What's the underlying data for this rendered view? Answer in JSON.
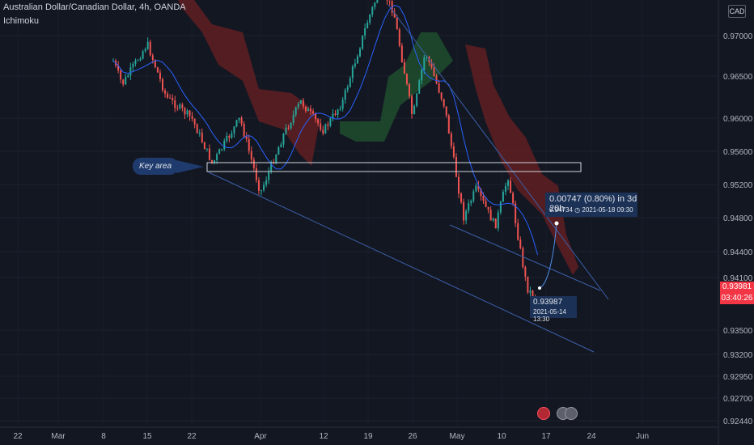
{
  "header": {
    "title": "Australian Dollar/Canadian Dollar, 4h, OANDA",
    "indicator": "Ichimoku",
    "currency_badge": "CAD"
  },
  "price_tag": {
    "price": "0.93981",
    "countdown": "03:40:26"
  },
  "annotations": {
    "key_area": "Key area",
    "measure_line1": "0.00747 (0.80%) in 3d 20h",
    "measure_line2_price": "0.94734",
    "measure_line2_time": "2021-05-18  09:30",
    "low_price": "0.93987",
    "low_time": "2021-05-14 13:30"
  },
  "chart_data": {
    "type": "candlestick",
    "title": "Australian Dollar/Canadian Dollar, 4h, OANDA",
    "indicator": "Ichimoku",
    "y_ticks": [
      "0.97000",
      "0.96500",
      "0.96000",
      "0.95600",
      "0.95200",
      "0.94800",
      "0.94400",
      "0.94100",
      "0.93500",
      "0.93200",
      "0.92950",
      "0.92700",
      "0.92440"
    ],
    "x_ticks": [
      "22",
      "Mar",
      "8",
      "15",
      "22",
      "Apr",
      "12",
      "19",
      "26",
      "May",
      "10",
      "17",
      "24",
      "Jun"
    ],
    "close_path": [
      [
        "2021-02-22",
        0.9755
      ],
      [
        "2021-02-25",
        0.9715
      ],
      [
        "2021-03-01",
        0.969
      ],
      [
        "2021-03-04",
        0.9665
      ],
      [
        "2021-03-08",
        0.97
      ],
      [
        "2021-03-11",
        0.964
      ],
      [
        "2021-03-15",
        0.969
      ],
      [
        "2021-03-18",
        0.9625
      ],
      [
        "2021-03-22",
        0.96
      ],
      [
        "2021-03-25",
        0.9545
      ],
      [
        "2021-03-29",
        0.96
      ],
      [
        "2021-04-01",
        0.951
      ],
      [
        "2021-04-05",
        0.958
      ],
      [
        "2021-04-08",
        0.962
      ],
      [
        "2021-04-12",
        0.9585
      ],
      [
        "2021-04-15",
        0.962
      ],
      [
        "2021-04-19",
        0.972
      ],
      [
        "2021-04-21",
        0.976
      ],
      [
        "2021-04-23",
        0.973
      ],
      [
        "2021-04-26",
        0.96
      ],
      [
        "2021-04-28",
        0.968
      ],
      [
        "2021-05-01",
        0.9615
      ],
      [
        "2021-05-04",
        0.948
      ],
      [
        "2021-05-06",
        0.9515
      ],
      [
        "2021-05-09",
        0.947
      ],
      [
        "2021-05-11",
        0.953
      ],
      [
        "2021-05-13",
        0.944
      ],
      [
        "2021-05-14",
        0.93987
      ],
      [
        "2021-05-16",
        0.938
      ]
    ]
  }
}
